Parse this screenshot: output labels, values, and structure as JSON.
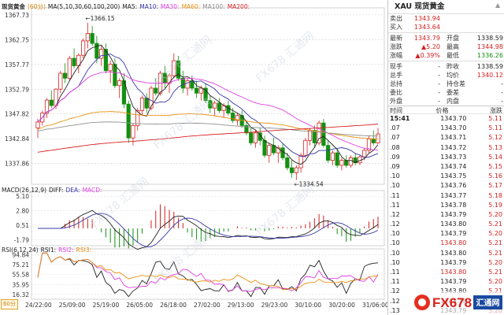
{
  "chart": {
    "symbol_label": "现货黄金",
    "period_label": "(60分)",
    "ma_label": "MA(5,10,30,60,100,200)",
    "ma_items": [
      {
        "label": "MA5:",
        "color": "#222222"
      },
      {
        "label": "MA10:",
        "color": "#3a3aa8"
      },
      {
        "label": "MA30:",
        "color": "#e040e0"
      },
      {
        "label": "MA60:",
        "color": "#e89010"
      },
      {
        "label": "MA100:",
        "color": "#909090"
      },
      {
        "label": "MA200:",
        "color": "#d62020"
      }
    ],
    "price_ticks": [
      "1367.73",
      "1362.75",
      "1357.77",
      "1352.79",
      "1347.82",
      "1342.84",
      "1337.86"
    ],
    "high_annotation": "1366.15",
    "low_annotation": "1334.54",
    "macd_title": "MACD(26,12,9)",
    "macd_items": [
      {
        "label": "DIFF:",
        "color": "#222222"
      },
      {
        "label": "DEA:",
        "color": "#3a3aa8"
      },
      {
        "label": "MACD:",
        "color": "#e040e0"
      }
    ],
    "macd_ticks": [
      "5.10",
      "2.80",
      "0.51",
      "-1.79"
    ],
    "rsi_title": "RSI(6,12,24)",
    "rsi_items": [
      {
        "label": "RSI1:",
        "color": "#222222"
      },
      {
        "label": "RSI2:",
        "color": "#e040e0"
      },
      {
        "label": "RSI3:",
        "color": "#e89010"
      }
    ],
    "rsi_ticks": [
      "94.84",
      "75.21",
      "55.58",
      "35.95",
      "16.32"
    ],
    "x_labels": [
      "24/22:00",
      "25/09:00",
      "25/19:00",
      "26/05:00",
      "26/18:00",
      "27/02:00",
      "29/13:00",
      "29/23:00",
      "30/10:00",
      "30/20:00",
      "31/06:00"
    ],
    "period_tag": "60分",
    "watermark": "FX678 汇通网"
  },
  "chart_data": {
    "type": "candlestick",
    "title": "现货黄金 (60分)",
    "x_labels": [
      "24/22:00",
      "25/09:00",
      "25/19:00",
      "26/05:00",
      "26/18:00",
      "27/02:00",
      "29/13:00",
      "29/23:00",
      "30/10:00",
      "30/20:00",
      "31/06:00"
    ],
    "ylim": [
      1334.0,
      1368.5
    ],
    "candles": [
      [
        1345.0,
        1346.8,
        1343.0,
        1346.2
      ],
      [
        1346.2,
        1348.5,
        1345.5,
        1348.0
      ],
      [
        1348.0,
        1351.0,
        1347.0,
        1350.6
      ],
      [
        1350.6,
        1352.5,
        1349.0,
        1349.5
      ],
      [
        1349.5,
        1353.0,
        1348.8,
        1352.8
      ],
      [
        1352.8,
        1356.5,
        1352.0,
        1356.0
      ],
      [
        1356.0,
        1358.0,
        1354.0,
        1355.0
      ],
      [
        1355.0,
        1359.5,
        1354.5,
        1359.0
      ],
      [
        1359.0,
        1361.0,
        1357.0,
        1357.5
      ],
      [
        1357.5,
        1360.0,
        1356.0,
        1359.6
      ],
      [
        1359.6,
        1363.0,
        1359.0,
        1362.5
      ],
      [
        1362.5,
        1366.15,
        1361.0,
        1364.0
      ],
      [
        1364.0,
        1365.5,
        1361.5,
        1362.0
      ],
      [
        1362.0,
        1363.5,
        1358.0,
        1359.0
      ],
      [
        1359.0,
        1361.5,
        1357.5,
        1360.8
      ],
      [
        1360.8,
        1362.0,
        1356.0,
        1356.5
      ],
      [
        1356.5,
        1358.5,
        1354.0,
        1357.8
      ],
      [
        1357.8,
        1359.0,
        1353.0,
        1353.5
      ],
      [
        1353.5,
        1355.0,
        1351.0,
        1354.5
      ],
      [
        1354.5,
        1356.0,
        1349.0,
        1349.8
      ],
      [
        1349.8,
        1350.5,
        1342.0,
        1343.0
      ],
      [
        1343.0,
        1346.0,
        1341.5,
        1345.5
      ],
      [
        1345.5,
        1349.0,
        1344.5,
        1348.5
      ],
      [
        1348.5,
        1351.5,
        1347.5,
        1351.0
      ],
      [
        1351.0,
        1352.0,
        1348.0,
        1349.0
      ],
      [
        1349.0,
        1353.5,
        1348.5,
        1353.0
      ],
      [
        1353.0,
        1355.0,
        1351.5,
        1352.0
      ],
      [
        1352.0,
        1356.5,
        1351.5,
        1356.0
      ],
      [
        1356.0,
        1357.5,
        1353.0,
        1354.0
      ],
      [
        1354.0,
        1356.0,
        1352.0,
        1355.5
      ],
      [
        1355.5,
        1360.0,
        1355.0,
        1358.5
      ],
      [
        1358.5,
        1359.5,
        1354.5,
        1355.0
      ],
      [
        1355.0,
        1356.5,
        1352.0,
        1353.0
      ],
      [
        1353.0,
        1355.0,
        1351.5,
        1354.5
      ],
      [
        1354.5,
        1355.5,
        1352.5,
        1353.0
      ],
      [
        1353.0,
        1354.5,
        1351.0,
        1352.0
      ],
      [
        1352.0,
        1353.5,
        1350.5,
        1353.0
      ],
      [
        1353.0,
        1354.0,
        1350.0,
        1350.5
      ],
      [
        1350.5,
        1351.5,
        1348.0,
        1349.0
      ],
      [
        1349.0,
        1350.5,
        1347.5,
        1350.0
      ],
      [
        1350.0,
        1351.0,
        1348.0,
        1348.5
      ],
      [
        1348.5,
        1350.0,
        1347.0,
        1349.5
      ],
      [
        1349.5,
        1350.5,
        1347.5,
        1348.0
      ],
      [
        1348.0,
        1349.0,
        1346.0,
        1346.5
      ],
      [
        1346.5,
        1348.0,
        1345.5,
        1347.5
      ],
      [
        1347.5,
        1348.5,
        1345.0,
        1345.5
      ],
      [
        1345.5,
        1346.5,
        1343.5,
        1344.0
      ],
      [
        1344.0,
        1345.0,
        1341.5,
        1342.0
      ],
      [
        1342.0,
        1344.5,
        1341.0,
        1344.0
      ],
      [
        1344.0,
        1345.0,
        1341.5,
        1342.5
      ],
      [
        1342.5,
        1343.5,
        1339.0,
        1339.5
      ],
      [
        1339.5,
        1342.0,
        1338.0,
        1341.5
      ],
      [
        1341.5,
        1343.0,
        1339.5,
        1340.0
      ],
      [
        1340.0,
        1341.5,
        1338.0,
        1341.0
      ],
      [
        1341.0,
        1342.0,
        1338.5,
        1339.0
      ],
      [
        1339.0,
        1340.0,
        1336.5,
        1337.0
      ],
      [
        1337.0,
        1338.5,
        1335.0,
        1336.0
      ],
      [
        1336.0,
        1337.5,
        1334.54,
        1337.0
      ],
      [
        1337.0,
        1340.0,
        1336.0,
        1339.5
      ],
      [
        1339.5,
        1343.0,
        1339.0,
        1342.5
      ],
      [
        1342.5,
        1345.0,
        1341.5,
        1344.5
      ],
      [
        1344.5,
        1345.5,
        1341.0,
        1342.0
      ],
      [
        1342.0,
        1346.5,
        1341.5,
        1346.0
      ],
      [
        1346.0,
        1346.8,
        1341.0,
        1341.5
      ],
      [
        1341.5,
        1342.5,
        1338.0,
        1338.5
      ],
      [
        1338.5,
        1340.5,
        1337.5,
        1340.0
      ],
      [
        1340.0,
        1341.0,
        1337.0,
        1337.5
      ],
      [
        1337.5,
        1339.0,
        1336.5,
        1338.5
      ],
      [
        1338.5,
        1339.5,
        1337.0,
        1337.5
      ],
      [
        1337.5,
        1339.5,
        1337.0,
        1339.0
      ],
      [
        1339.0,
        1340.0,
        1337.5,
        1338.0
      ],
      [
        1338.0,
        1339.5,
        1337.5,
        1339.2
      ],
      [
        1339.2,
        1341.0,
        1338.5,
        1340.5
      ],
      [
        1340.5,
        1343.5,
        1340.0,
        1342.8
      ],
      [
        1342.8,
        1344.5,
        1341.5,
        1342.0
      ],
      [
        1342.0,
        1344.98,
        1341.8,
        1343.79
      ]
    ],
    "candle_format": "open, high, low, close",
    "series": [
      {
        "name": "MA5"
      },
      {
        "name": "MA10"
      },
      {
        "name": "MA30"
      },
      {
        "name": "MA60"
      },
      {
        "name": "MA100"
      },
      {
        "name": "MA200"
      }
    ],
    "indicators": {
      "macd": {
        "ylim": [
          -2.5,
          5.5
        ]
      },
      "rsi": {
        "ylim": [
          10,
          100
        ]
      }
    }
  },
  "quote": {
    "title": "XAU 现货黄金",
    "rows": [
      {
        "lab": "卖出",
        "val": "1343.94",
        "vcls": "red",
        "lab2": "",
        "val2": "",
        "v2cls": "black"
      },
      {
        "lab": "买入",
        "val": "1343.64",
        "vcls": "red",
        "lab2": "",
        "val2": "",
        "v2cls": "black"
      },
      {
        "lab": "最新",
        "val": "1343.79",
        "vcls": "red",
        "lab2": "开盘",
        "val2": "1338.59",
        "v2cls": "black"
      },
      {
        "lab": "涨跌",
        "val": "▲5.20",
        "vcls": "red",
        "lab2": "最高",
        "val2": "1344.98",
        "v2cls": "red"
      },
      {
        "lab": "涨幅",
        "val": "▲0.39%",
        "vcls": "red",
        "lab2": "最低",
        "val2": "1336.26",
        "v2cls": "green"
      },
      {
        "lab": "现手",
        "val": "-",
        "vcls": "black",
        "lab2": "昨收",
        "val2": "1338.59",
        "v2cls": "black"
      },
      {
        "lab": "总手",
        "val": "-",
        "vcls": "black",
        "lab2": "均价",
        "val2": "1340.12",
        "v2cls": "red"
      },
      {
        "lab": "总持",
        "val": "-",
        "vcls": "black",
        "lab2": "持仓差",
        "val2": "-",
        "v2cls": "black"
      },
      {
        "lab": "委比",
        "val": "-",
        "vcls": "black",
        "lab2": "委差",
        "val2": "-",
        "v2cls": "black"
      },
      {
        "lab": "外盘",
        "val": "-",
        "vcls": "black",
        "lab2": "内盘",
        "val2": "-",
        "v2cls": "black"
      }
    ],
    "tick_headers": [
      "时间",
      "价格",
      "涨跌"
    ],
    "ticks": [
      {
        "time": "15:41",
        "price": "1343.70",
        "chg": "5.11",
        "pcls": ""
      },
      {
        "time": ".07",
        "price": "1343.70",
        "chg": "5.11",
        "pcls": ""
      },
      {
        "time": ".07",
        "price": "1343.71",
        "chg": "5.12",
        "pcls": ""
      },
      {
        "time": ".08",
        "price": "1343.72",
        "chg": "5.13",
        "pcls": ""
      },
      {
        "time": ".09",
        "price": "1343.73",
        "chg": "5.14",
        "pcls": ""
      },
      {
        "time": ".09",
        "price": "1343.74",
        "chg": "5.15",
        "pcls": ""
      },
      {
        "time": ".10",
        "price": "1343.75",
        "chg": "5.16",
        "pcls": ""
      },
      {
        "time": ".10",
        "price": "1343.76",
        "chg": "5.17",
        "pcls": ""
      },
      {
        "time": ".11",
        "price": "1343.77",
        "chg": "5.18",
        "pcls": ""
      },
      {
        "time": ".11",
        "price": "1343.78",
        "chg": "5.19",
        "pcls": ""
      },
      {
        "time": ".12",
        "price": "1343.79",
        "chg": "5.20",
        "pcls": ""
      },
      {
        "time": ".12",
        "price": "1343.80",
        "chg": "5.21",
        "pcls": ""
      },
      {
        "time": ".10",
        "price": "1343.79",
        "chg": "5.20",
        "pcls": ""
      },
      {
        "time": ".10",
        "price": "1343.80",
        "chg": "5.21",
        "pcls": "pv-red"
      },
      {
        "time": ".10",
        "price": "1343.80",
        "chg": "5.21",
        "pcls": ""
      },
      {
        "time": ".10",
        "price": "1343.79",
        "chg": "5.20",
        "pcls": ""
      },
      {
        "time": ".11",
        "price": "1343.80",
        "chg": "5.21",
        "pcls": "pv-red"
      },
      {
        "time": ".11",
        "price": "1343.79",
        "chg": "5.20",
        "pcls": ""
      },
      {
        "time": ".12",
        "price": "1343.80",
        "chg": "5.21",
        "pcls": ""
      },
      {
        "time": ".12",
        "price": "1343.79",
        "chg": "5.20",
        "pcls": ""
      },
      {
        "time": ".13",
        "price": "1343.79",
        "chg": "5.20",
        "pcls": ""
      }
    ],
    "logo_text": "FX678",
    "logo_sub": "汇通网"
  }
}
